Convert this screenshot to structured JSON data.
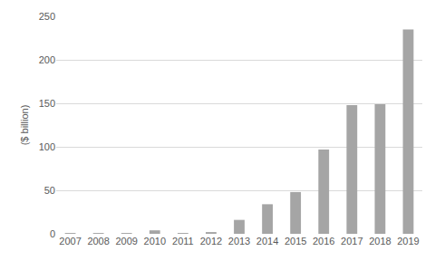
{
  "chart_data": {
    "type": "bar",
    "y_label": "($ billion)",
    "categories": [
      "2007",
      "2008",
      "2009",
      "2010",
      "2011",
      "2012",
      "2013",
      "2014",
      "2015",
      "2016",
      "2017",
      "2018",
      "2019"
    ],
    "values": [
      1,
      1,
      1,
      4,
      1,
      2,
      16,
      34,
      48,
      97,
      148,
      149,
      235
    ],
    "color": "#a5a5a5",
    "ylim": [
      0,
      250
    ],
    "yticks": [
      0,
      50,
      100,
      150,
      200,
      250
    ],
    "grid": true
  }
}
